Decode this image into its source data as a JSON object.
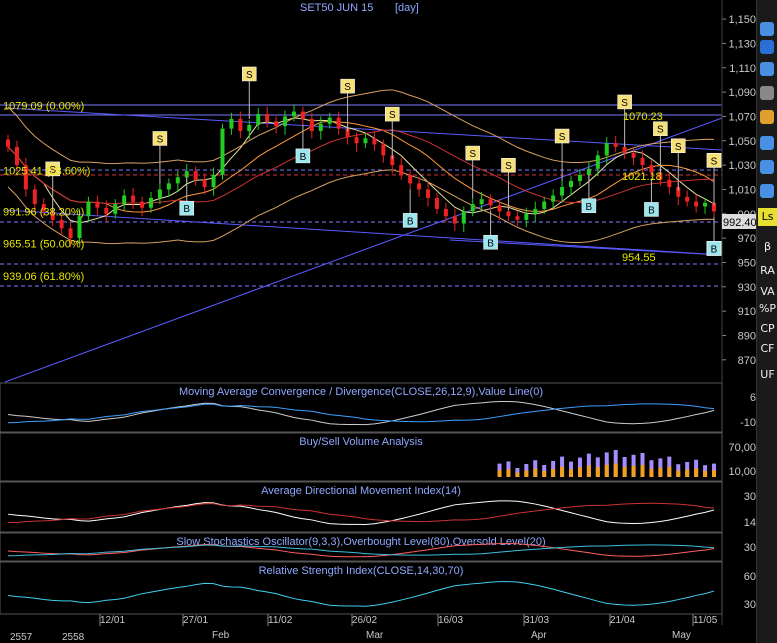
{
  "chart_data": {
    "type": "candlestick",
    "title": "SET50 JUN 15",
    "interval": "[day]",
    "ylim": [
      860,
      1155
    ],
    "y_ticks": [
      870,
      890,
      910,
      930,
      950,
      970,
      990,
      1010,
      1030,
      1050,
      1070,
      1090,
      1110,
      1130,
      1150
    ],
    "y_tick_labels": [
      "870",
      "890",
      "910",
      "930",
      "950",
      "970",
      "990",
      "1,010",
      "1,030",
      "1,050",
      "1,070",
      "1,090",
      "1,110",
      "1,130",
      "1,150"
    ],
    "last_price_label": "992.40",
    "x_year_labels": [
      "2557",
      "2558"
    ],
    "x_date_labels": [
      "12/01",
      "27/01",
      "11/02",
      "26/02",
      "16/03",
      "31/03",
      "21/04",
      "11/05"
    ],
    "x_month_labels": [
      "Feb",
      "Mar",
      "Apr",
      "May"
    ],
    "fib_levels": [
      {
        "value": 1079.09,
        "label": "1079.09 (0.00%)"
      },
      {
        "value": 1025.41,
        "label": "1025.41 (23.60%)"
      },
      {
        "value": 991.96,
        "label": "991.96 (38.20%)"
      },
      {
        "value": 965.51,
        "label": "965.51 (50.00%)"
      },
      {
        "value": 939.06,
        "label": "939.06 (61.80%)"
      }
    ],
    "annotations": [
      "1070.23",
      "1021.18",
      "954.55"
    ],
    "close": [
      1045,
      1030,
      1010,
      998,
      992,
      985,
      978,
      970,
      988,
      1000,
      995,
      990,
      998,
      1005,
      1000,
      995,
      1003,
      1010,
      1015,
      1020,
      1025,
      1018,
      1012,
      1022,
      1060,
      1068,
      1058,
      1063,
      1072,
      1066,
      1062,
      1070,
      1074,
      1068,
      1058,
      1064,
      1069,
      1060,
      1053,
      1048,
      1052,
      1047,
      1038,
      1030,
      1022,
      1015,
      1010,
      1003,
      994,
      988,
      982,
      992,
      998,
      1002,
      997,
      992,
      988,
      985,
      990,
      994,
      1000,
      1005,
      1012,
      1017,
      1022,
      1027,
      1038,
      1048,
      1045,
      1040,
      1036,
      1030,
      1024,
      1018,
      1012,
      1004,
      1000,
      996,
      999,
      992
    ],
    "signals": [
      {
        "type": "S",
        "i": 5
      },
      {
        "type": "S",
        "i": 17
      },
      {
        "type": "S",
        "i": 27
      },
      {
        "type": "S",
        "i": 38
      },
      {
        "type": "S",
        "i": 43
      },
      {
        "type": "S",
        "i": 52
      },
      {
        "type": "S",
        "i": 56
      },
      {
        "type": "S",
        "i": 62
      },
      {
        "type": "S",
        "i": 69
      },
      {
        "type": "S",
        "i": 73
      },
      {
        "type": "S",
        "i": 75
      },
      {
        "type": "S",
        "i": 86
      },
      {
        "type": "S",
        "i": 95
      },
      {
        "type": "B",
        "i": 20
      },
      {
        "type": "B",
        "i": 33
      },
      {
        "type": "B",
        "i": 45
      },
      {
        "type": "B",
        "i": 54
      },
      {
        "type": "B",
        "i": 65
      },
      {
        "type": "B",
        "i": 72
      },
      {
        "type": "B",
        "i": 79
      },
      {
        "type": "B",
        "i": 85
      },
      {
        "type": "B",
        "i": 92
      },
      {
        "type": "B",
        "i": 96
      },
      {
        "type": "B",
        "i": 99
      }
    ],
    "panels": [
      {
        "title": "Moving Average Convergence / Divergence(CLOSE,26,12,9),Value Line(0)",
        "ticks": [
          "6",
          "-10"
        ]
      },
      {
        "title": "Buy/Sell Volume Analysis",
        "ticks": [
          "70,00",
          "10,00"
        ]
      },
      {
        "title": "Average Directional Movement Index(14)",
        "ticks": [
          "30",
          "14"
        ]
      },
      {
        "title": "Slow Stochastics Oscillator(9,3,3),Overbought Level(80),Oversold Level(20)",
        "ticks": [
          "30"
        ]
      },
      {
        "title": "Relative Strength Index(CLOSE,14,30,70)",
        "ticks": [
          "60",
          "30"
        ]
      }
    ]
  },
  "sidebar": {
    "labels": [
      "Ls",
      "β",
      "RA",
      "VA",
      "%P",
      "CP",
      "CF",
      "UF"
    ]
  },
  "colors": {
    "background": "#000000",
    "axis_text": "#c8c8c8",
    "panel_title": "#8fa8ff",
    "fib_text": "#e6e600",
    "up_candle": "#22cc22",
    "down_candle": "#ee2222",
    "trendline": "#5a5aff",
    "sell_signal": "#f5e07a",
    "buy_signal": "#9ee6ee"
  }
}
